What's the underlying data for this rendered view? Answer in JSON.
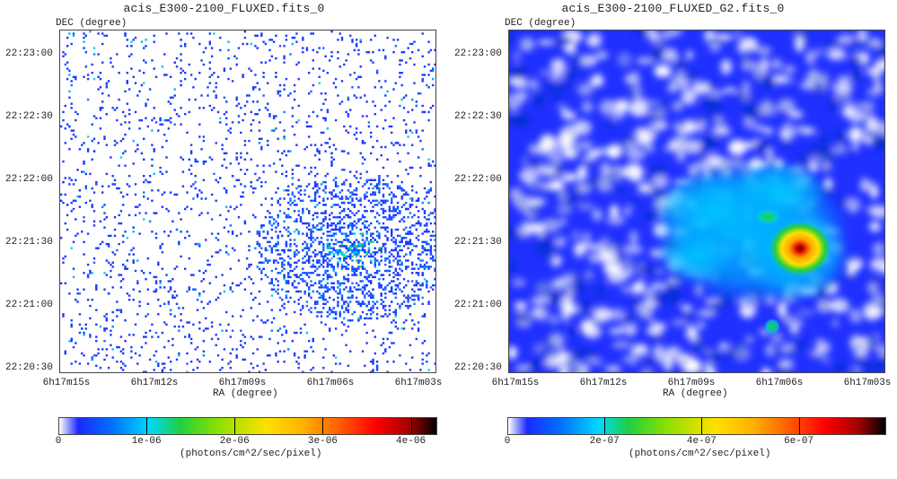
{
  "panels": [
    {
      "title": "acis_E300-2100_FLUXED.fits_0",
      "dec_label": "DEC (degree)",
      "ra_label": "RA (degree)",
      "y_ticks": [
        "22:23:00",
        "22:22:30",
        "22:22:00",
        "22:21:30",
        "22:21:00",
        "22:20:30"
      ],
      "x_ticks": [
        "6h17m15s",
        "6h17m12s",
        "6h17m09s",
        "6h17m06s",
        "6h17m03s"
      ],
      "colorbar_ticks": [
        "0",
        "1e-06",
        "2e-06",
        "3e-06",
        "4e-06"
      ],
      "colorbar_max": 4.3e-06,
      "colorbar_unit": "(photons/cm^2/sec/pixel)"
    },
    {
      "title": "acis_E300-2100_FLUXED_G2.fits_0",
      "dec_label": "DEC (degree)",
      "ra_label": "RA (degree)",
      "y_ticks": [
        "22:23:00",
        "22:22:30",
        "22:22:00",
        "22:21:30",
        "22:21:00",
        "22:20:30"
      ],
      "x_ticks": [
        "6h17m15s",
        "6h17m12s",
        "6h17m09s",
        "6h17m06s",
        "6h17m03s"
      ],
      "colorbar_ticks": [
        "0",
        "2e-07",
        "4e-07",
        "6e-07"
      ],
      "colorbar_max": 7.8e-07,
      "colorbar_unit": "(photons/cm^2/sec/pixel)"
    }
  ],
  "colors": {
    "map_low": "#1a3cff",
    "map_mid": "#00c8ff",
    "map_green": "#24d03c",
    "map_yellow": "#ffe000",
    "map_red": "#e10000",
    "map_peak": "#220000",
    "background": "#ffffff"
  }
}
